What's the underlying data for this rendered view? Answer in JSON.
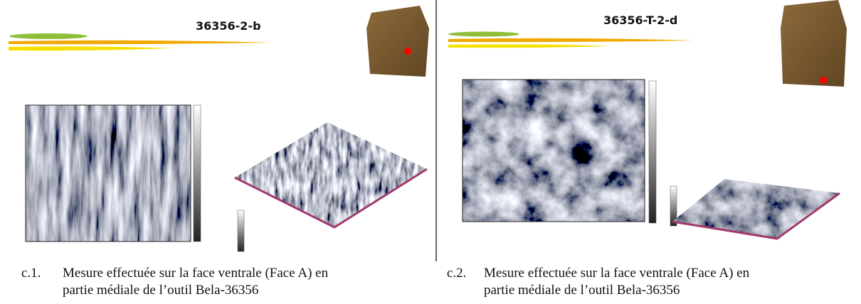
{
  "panels": [
    {
      "title": "36356-2-b",
      "label": "c.1.",
      "caption": [
        "Mesure effectuée sur la face ventrale (Face A) en",
        "partie médiale de l’outil Bela-36356"
      ]
    },
    {
      "title": "36356-T-2-d",
      "label": "c.2.",
      "caption": [
        "Mesure effectuée sur la face ventrale (Face A) en",
        "partie médiale de l’outil Bela-36356"
      ]
    }
  ]
}
